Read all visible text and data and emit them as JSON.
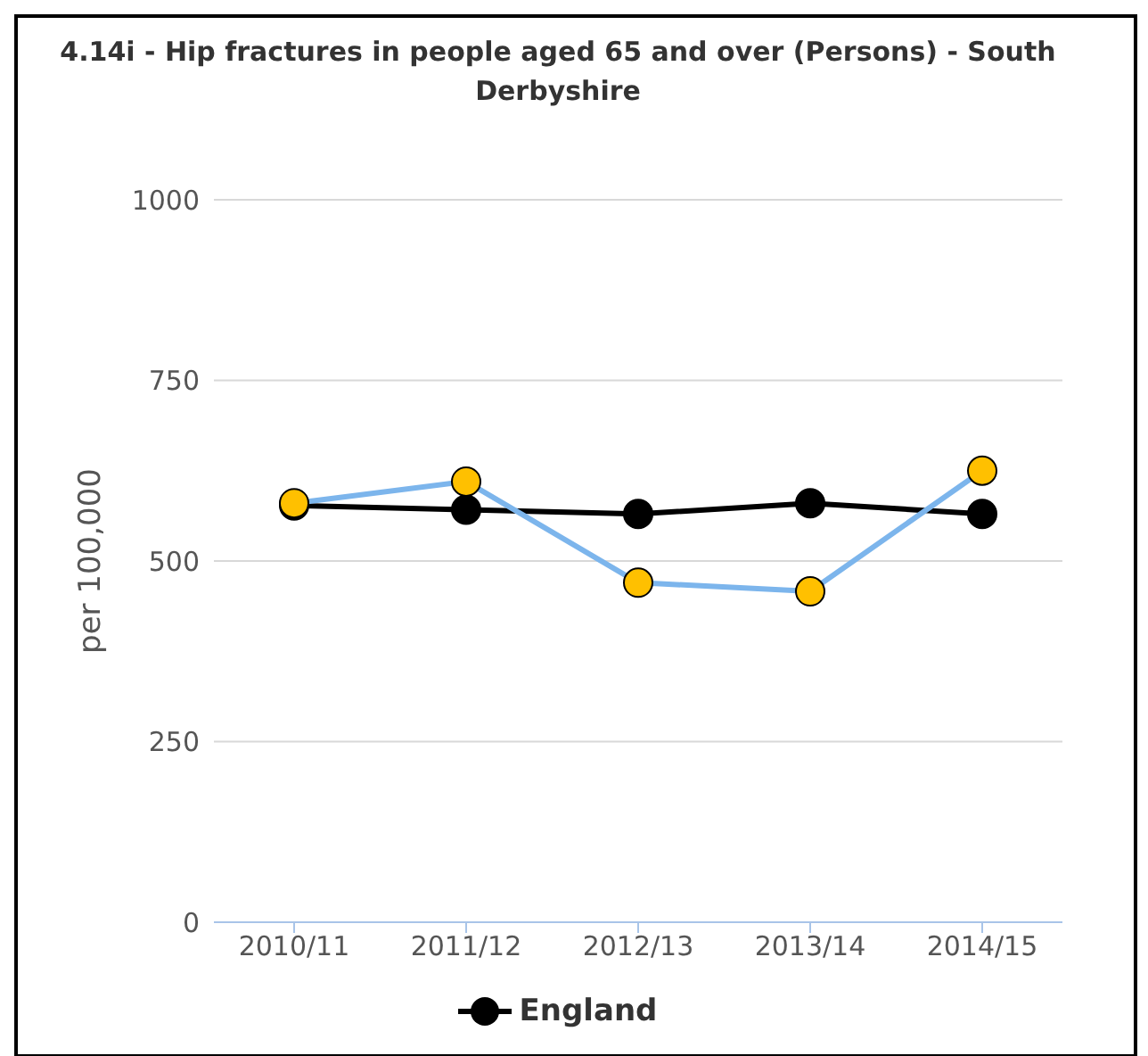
{
  "chart_data": {
    "type": "line",
    "title": "4.14i - Hip fractures in people aged 65 and over (Persons) - South Derbyshire",
    "ylabel": "per 100,000",
    "categories": [
      "2010/11",
      "2011/12",
      "2012/13",
      "2013/14",
      "2014/15"
    ],
    "series": [
      {
        "name": "England",
        "color": "#000000",
        "values": [
          577,
          571,
          565,
          580,
          565
        ]
      },
      {
        "color": "#7cb5ec",
        "values": [
          580,
          610,
          470,
          458,
          625
        ]
      }
    ],
    "ylim": [
      0,
      1000
    ],
    "yticks": [
      0,
      250,
      500,
      750,
      1000
    ],
    "grid": "y",
    "legend": "bottom",
    "marker": "circle"
  }
}
